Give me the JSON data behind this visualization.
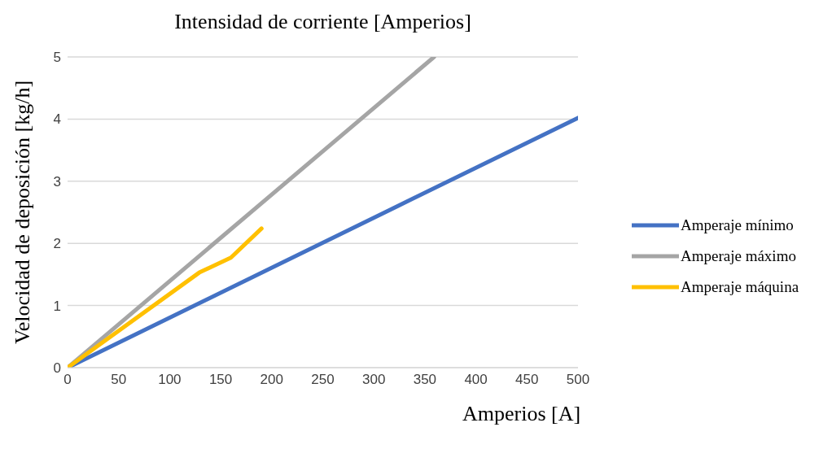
{
  "chart_data": {
    "type": "line",
    "title": "Intensidad de corriente [Amperios]",
    "xlabel": "Amperios [A]",
    "ylabel": "Velocidad de deposición [kg/h]",
    "xlim": [
      0,
      500
    ],
    "xticks": [
      0,
      50,
      100,
      150,
      200,
      250,
      300,
      350,
      400,
      450,
      500
    ],
    "ylim": [
      0,
      5
    ],
    "yticks": [
      0,
      1,
      2,
      3,
      4,
      5
    ],
    "grid": "y",
    "legend": "right",
    "marker": "none",
    "line_style": "solid",
    "series": [
      {
        "name": "Amperaje mínimo",
        "color": "#4472c4",
        "x": [
          0,
          500
        ],
        "values": [
          0,
          4.02
        ]
      },
      {
        "name": "Amperaje máximo",
        "color": "#a5a5a5",
        "x": [
          0,
          359
        ],
        "values": [
          0,
          5
        ]
      },
      {
        "name": "Amperaje máquina",
        "color": "#ffc000",
        "x": [
          0,
          129,
          160,
          190
        ],
        "values": [
          0,
          1.53,
          1.77,
          2.24
        ]
      }
    ]
  }
}
